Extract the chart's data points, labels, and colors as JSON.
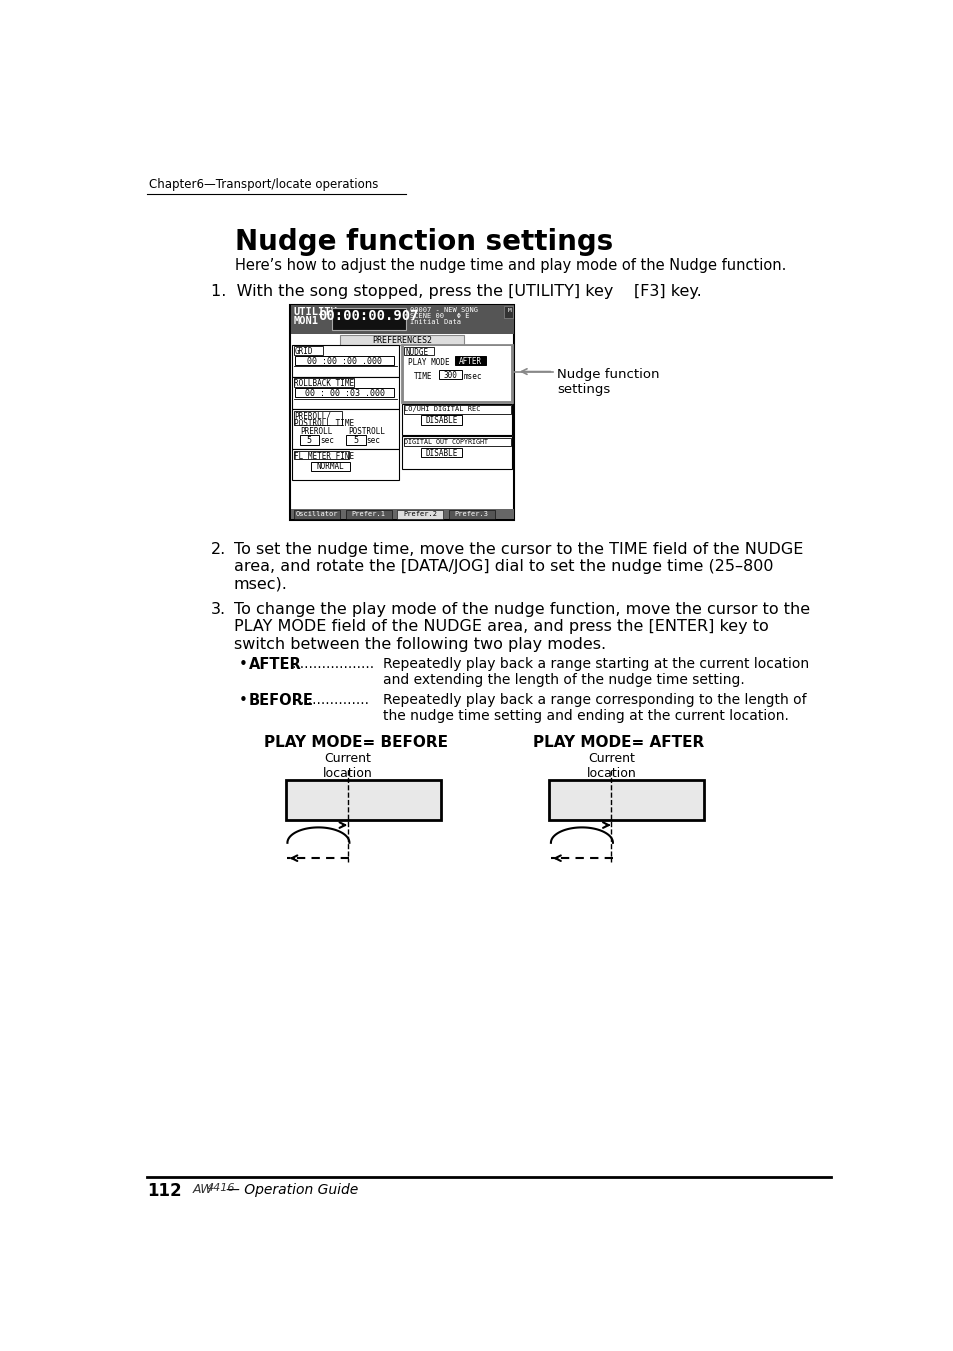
{
  "page_bg": "#ffffff",
  "chapter_header": "Chapter6—Transport/locate operations",
  "title": "Nudge function settings",
  "subtitle": "Here’s how to adjust the nudge time and play mode of the Nudge function.",
  "step1": "1.  With the song stopped, press the [UTILITY] key    [F3] key.",
  "nudge_label": "Nudge function\nsettings",
  "step2_num": "2.",
  "step2_text": "To set the nudge time, move the cursor to the TIME field of the NUDGE\narea, and rotate the [DATA/JOG] dial to set the nudge time (25–800\nmsec).",
  "step3_num": "3.",
  "step3_text": "To change the play mode of the nudge function, move the cursor to the\nPLAY MODE field of the NUDGE area, and press the [ENTER] key to\nswitch between the following two play modes.",
  "bullet_after_bold": "AFTER",
  "bullet_after_dots": ".....................",
  "bullet_after_text": "Repeatedly play back a range starting at the current location\n                   and extending the length of the nudge time setting.",
  "bullet_before_bold": "BEFORE",
  "bullet_before_dots": "................",
  "bullet_before_text": "Repeatedly play back a range corresponding to the length of\n                  the nudge time setting and ending at the current location.",
  "play_mode_before_title": "PLAY MODE= BEFORE",
  "play_mode_after_title": "PLAY MODE= AFTER",
  "current_location": "Current\nlocation",
  "page_number": "112",
  "footer_brand": "AW4416",
  "footer_text": "— Operation Guide"
}
